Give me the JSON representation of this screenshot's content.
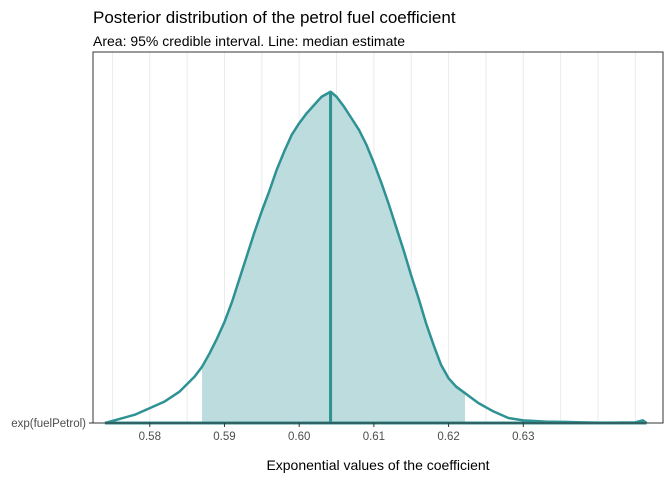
{
  "chart_data": {
    "type": "area",
    "title": "Posterior distribution of the petrol fuel coefficient",
    "subtitle": "Area: 95% credible interval. Line: median estimate",
    "xlabel": "Exponential values of the coefficient",
    "ylabel": "",
    "x_ticks": [
      0.58,
      0.59,
      0.6,
      0.61,
      0.62,
      0.63
    ],
    "x_tick_labels": [
      "0.58",
      "0.59",
      "0.60",
      "0.61",
      "0.62",
      "0.63"
    ],
    "y_category": "exp(fuelPetrol)",
    "xlim": [
      0.5724,
      0.6487
    ],
    "ylim": [
      0,
      1.12
    ],
    "grid": true,
    "legend": "none",
    "median": 0.6042,
    "credible_interval_95": [
      0.587,
      0.6222
    ],
    "density": {
      "x": [
        0.574,
        0.578,
        0.58,
        0.582,
        0.584,
        0.586,
        0.587,
        0.588,
        0.589,
        0.59,
        0.591,
        0.592,
        0.593,
        0.594,
        0.595,
        0.596,
        0.597,
        0.598,
        0.599,
        0.6,
        0.601,
        0.602,
        0.603,
        0.6042,
        0.605,
        0.606,
        0.607,
        0.608,
        0.609,
        0.61,
        0.611,
        0.612,
        0.613,
        0.614,
        0.615,
        0.616,
        0.617,
        0.618,
        0.619,
        0.62,
        0.621,
        0.6222,
        0.624,
        0.626,
        0.628,
        0.63,
        0.633,
        0.636,
        0.638,
        0.64,
        0.642,
        0.645,
        0.646,
        0.6465
      ],
      "y": [
        0.0,
        0.025,
        0.045,
        0.065,
        0.095,
        0.14,
        0.17,
        0.21,
        0.255,
        0.305,
        0.365,
        0.435,
        0.505,
        0.575,
        0.64,
        0.7,
        0.765,
        0.82,
        0.87,
        0.905,
        0.935,
        0.96,
        0.985,
        1.0,
        0.985,
        0.955,
        0.92,
        0.885,
        0.84,
        0.785,
        0.725,
        0.66,
        0.59,
        0.52,
        0.445,
        0.375,
        0.3,
        0.235,
        0.175,
        0.135,
        0.11,
        0.09,
        0.06,
        0.035,
        0.015,
        0.008,
        0.004,
        0.003,
        0.002,
        0.001,
        0.001,
        0.002,
        0.008,
        0.0
      ]
    },
    "colors": {
      "line": "#2e9294",
      "fill": "#bcdcdd",
      "grid": "#ebebeb",
      "panel_border": "#333333",
      "tick_label": "#4d4d4d"
    }
  }
}
